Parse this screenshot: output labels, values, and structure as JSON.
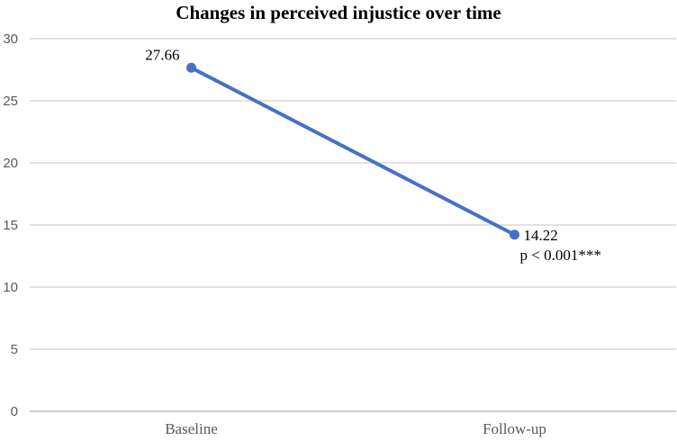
{
  "chart_data": {
    "type": "line",
    "title": "Changes in perceived injustice over time",
    "categories": [
      "Baseline",
      "Follow-up"
    ],
    "values": [
      27.66,
      14.22
    ],
    "point_labels": [
      "27.66",
      "14.22"
    ],
    "annotation": "p < 0.001***",
    "xlabel": "",
    "ylabel": "",
    "ylim": [
      0,
      30
    ],
    "yticks": [
      0,
      5,
      10,
      15,
      20,
      25,
      30
    ],
    "grid": true,
    "legend_position": "none",
    "colors": {
      "line": "#4472C4",
      "marker": "#4472C4",
      "gridline": "#D9D9D9",
      "axis_line": "#BFBFBF",
      "tick_label": "#595959",
      "category_label": "#595959",
      "data_label": "#000000",
      "title": "#000000"
    }
  }
}
